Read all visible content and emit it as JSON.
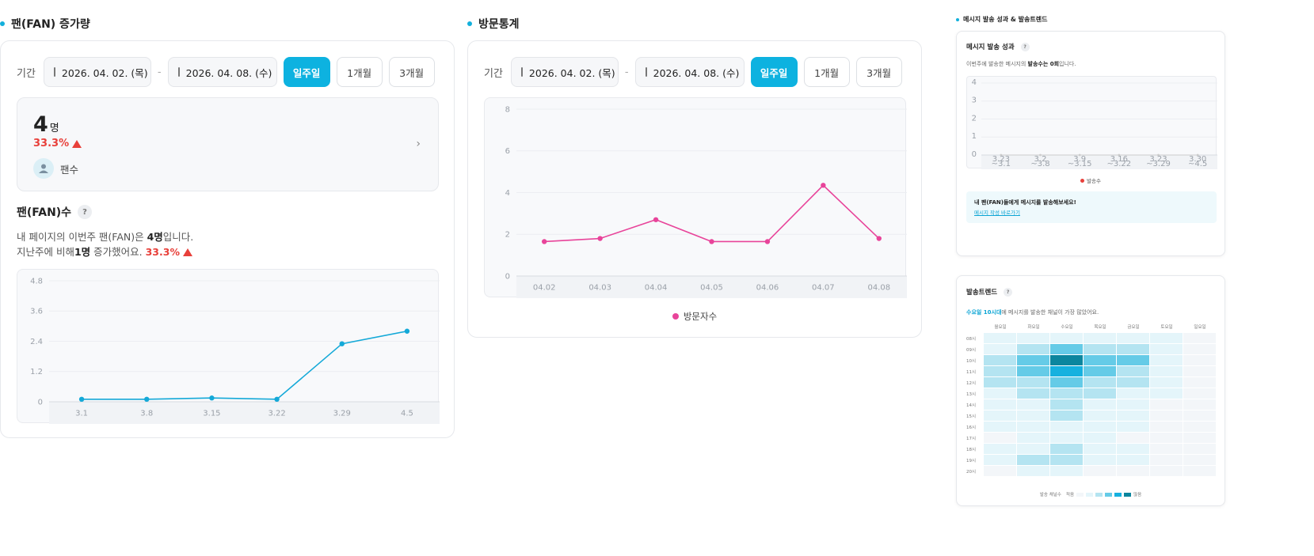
{
  "fan": {
    "section_title": "팬(FAN) 증가량",
    "period": {
      "label": "기간",
      "start": "2026. 04. 02. (목)",
      "end": "2026. 04. 08. (수)",
      "sep": "-",
      "buttons": [
        "일주일",
        "1개월",
        "3개월"
      ],
      "active": 0
    },
    "stat": {
      "value": "4",
      "unit": "명",
      "change": "33.3%",
      "label": "팬수",
      "arrow": "›"
    },
    "count_title": "팬(FAN)수",
    "desc1_a": "내 페이지의 이번주 팬(FAN)은 ",
    "desc1_b": "4명",
    "desc1_c": "입니다.",
    "desc2_a": "지난주에 비해 ",
    "desc2_b": "1명",
    "desc2_c": " 증가했어요. ",
    "desc2_d": "33.3%",
    "help": "?"
  },
  "visit": {
    "section_title": "방문통계",
    "period": {
      "label": "기간",
      "start": "2026. 04. 02. (목)",
      "end": "2026. 04. 08. (수)",
      "sep": "-",
      "buttons": [
        "일주일",
        "1개월",
        "3개월"
      ],
      "active": 0
    },
    "legend": "방문자수"
  },
  "message": {
    "section_title": "메시지 발송 성과 & 발송트렌드",
    "perf_title": "메시지 발송 성과",
    "perf_desc_a": "이번주에 발송한 메시지의 ",
    "perf_desc_b": "발송수는 0회",
    "perf_desc_c": "입니다.",
    "legend": "발송수",
    "cta_title": "내 팬(FAN)들에게 메시지를 발송해보세요!",
    "cta_link": "메시지 작성 바로가기",
    "trend_title": "발송트렌드",
    "trend_desc_a": "수요일 10시대",
    "trend_desc_b": "에 메시지를 발송한 채널이 가장 많았어요.",
    "scale_label": "발송 채널수",
    "scale_low": "적음",
    "scale_high": "많음",
    "help": "?"
  },
  "chart_data": [
    {
      "type": "line",
      "x": [
        "3.1",
        "3.8",
        "3.15",
        "3.22",
        "3.29",
        "4.5"
      ],
      "series": [
        {
          "values": [
            0.1,
            0.1,
            0.15,
            0.1,
            2.3,
            2.8
          ]
        }
      ],
      "y_ticks": [
        "4.8",
        "3.6",
        "2.4",
        "1.2",
        "0"
      ],
      "ylim": [
        0,
        4.8
      ],
      "color": "#14a9d8"
    },
    {
      "type": "line",
      "x": [
        "04.02",
        "04.03",
        "04.04",
        "04.05",
        "04.06",
        "04.07",
        "04.08"
      ],
      "series": [
        {
          "name": "방문자수",
          "values": [
            1.65,
            1.8,
            2.7,
            1.65,
            1.65,
            4.35,
            1.8
          ]
        }
      ],
      "y_ticks": [
        "8",
        "6",
        "4",
        "2",
        "0"
      ],
      "ylim": [
        0,
        8
      ],
      "color": "#e8449a"
    },
    {
      "type": "line",
      "x": [
        "3.23 ~3.1",
        "3.2 ~3.8",
        "3.9 ~3.15",
        "3.16 ~3.22",
        "3.23 ~3.29",
        "3.30 ~4.5"
      ],
      "series": [
        {
          "name": "발송수",
          "values": [
            0,
            0,
            0,
            0,
            0,
            0
          ]
        }
      ],
      "y_ticks": [
        "4",
        "3",
        "2",
        "1",
        "0"
      ],
      "ylim": [
        0,
        4
      ],
      "color": "#cccccc"
    },
    {
      "type": "heatmap",
      "columns": [
        "월요일",
        "화요일",
        "수요일",
        "목요일",
        "금요일",
        "토요일",
        "일요일"
      ],
      "rows": [
        "08시",
        "09시",
        "10시",
        "11시",
        "12시",
        "13시",
        "14시",
        "15시",
        "16시",
        "17시",
        "18시",
        "19시",
        "20시"
      ],
      "values": [
        [
          1,
          1,
          1,
          1,
          1,
          1,
          0
        ],
        [
          1,
          2,
          3,
          2,
          2,
          1,
          0
        ],
        [
          2,
          3,
          5,
          3,
          3,
          1,
          0
        ],
        [
          2,
          3,
          4,
          3,
          2,
          1,
          0
        ],
        [
          2,
          2,
          3,
          2,
          2,
          1,
          0
        ],
        [
          1,
          2,
          2,
          2,
          1,
          1,
          0
        ],
        [
          1,
          1,
          2,
          1,
          1,
          0,
          0
        ],
        [
          1,
          1,
          2,
          1,
          1,
          0,
          0
        ],
        [
          1,
          1,
          1,
          1,
          1,
          0,
          0
        ],
        [
          0,
          1,
          1,
          1,
          0,
          0,
          0
        ],
        [
          1,
          1,
          2,
          1,
          1,
          0,
          0
        ],
        [
          1,
          2,
          2,
          1,
          1,
          0,
          0
        ],
        [
          0,
          1,
          1,
          0,
          0,
          0,
          0
        ]
      ]
    }
  ]
}
